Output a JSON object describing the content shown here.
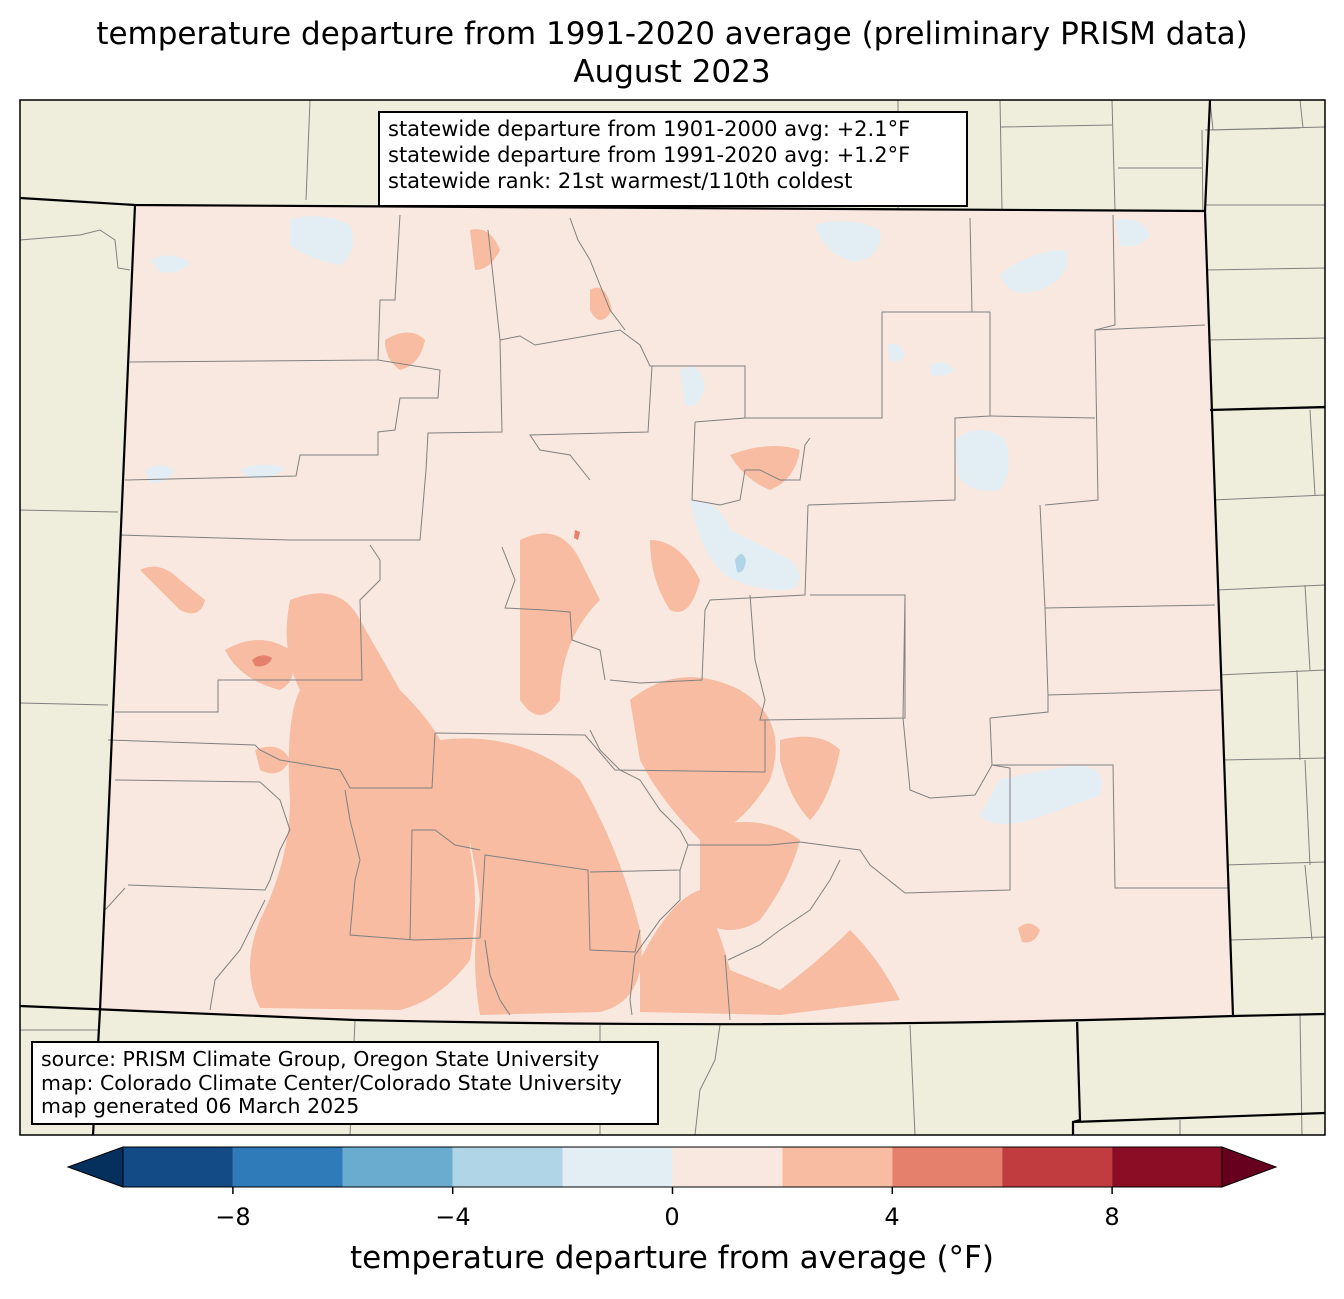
{
  "title": {
    "line1": "temperature departure from 1991-2020 average (preliminary PRISM data)",
    "line2": "August 2023"
  },
  "stats_box": {
    "line1": "statewide departure from 1901-2000 avg: +2.1°F",
    "line2": "statewide departure from 1991-2020 avg: +1.2°F",
    "line3": "statewide rank: 21st warmest/110th coldest"
  },
  "source_box": {
    "line1": "source: PRISM Climate Group, Oregon State University",
    "line2": "map: Colorado Climate Center/Colorado State University",
    "line3": "map generated 06 March 2025"
  },
  "colorbar": {
    "label": "temperature departure from average (°F)",
    "ticks": [
      "−8",
      "−4",
      "0",
      "4",
      "8"
    ],
    "tick_values": [
      -8,
      -4,
      0,
      4,
      8
    ],
    "range": [
      -10,
      10
    ],
    "levels": [
      -10,
      -8,
      -6,
      -4,
      -2,
      0,
      2,
      4,
      6,
      8,
      10
    ],
    "colors": [
      "#134b87",
      "#2f7ab9",
      "#6aacd0",
      "#b0d5e7",
      "#e3edf4",
      "#f9e8df",
      "#f7bca1",
      "#e4806b",
      "#c03c3e",
      "#8a0c25"
    ],
    "under_color": "#05305e",
    "over_color": "#67001f"
  },
  "map_colors": {
    "land_background": "#efeedc",
    "base_fill": "#f9e8df",
    "warm_fill": "#f7bca1",
    "warmer_fill": "#e4806b",
    "cool_fill": "#e3edf4",
    "cooler_fill": "#b0d5e7",
    "county_line": "#808080",
    "state_line": "#000000"
  }
}
